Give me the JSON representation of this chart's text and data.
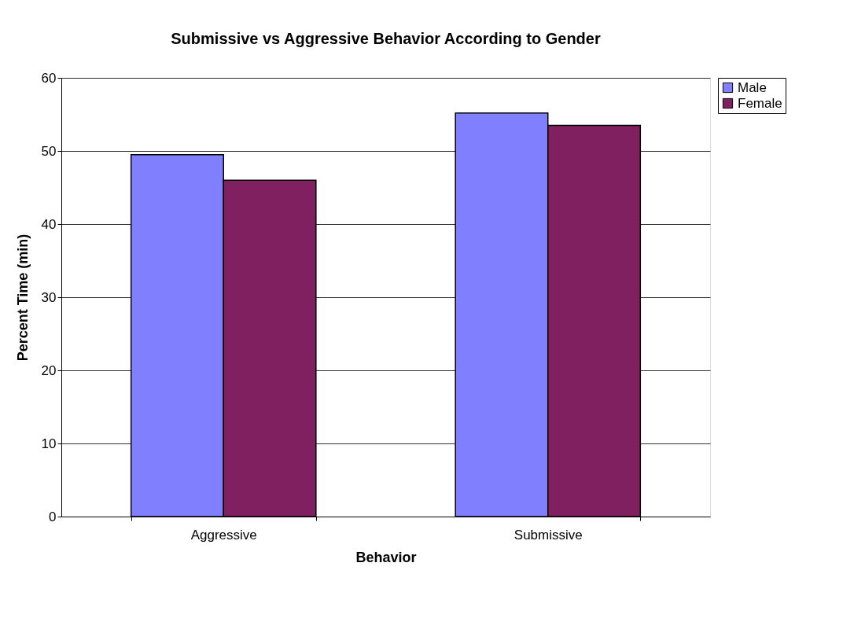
{
  "chart_data": {
    "type": "bar",
    "title": "Submissive vs Aggressive Behavior According to Gender",
    "xlabel": "Behavior",
    "ylabel": "Percent Time (min)",
    "categories": [
      "Aggressive",
      "Submissive"
    ],
    "series": [
      {
        "name": "Male",
        "color": "#8080ff",
        "values": [
          49.5,
          55.2
        ]
      },
      {
        "name": "Female",
        "color": "#802060",
        "values": [
          46.0,
          53.5
        ]
      }
    ],
    "ylim": [
      0,
      60
    ],
    "yticks": [
      0,
      10,
      20,
      30,
      40,
      50,
      60
    ],
    "grid": "y",
    "legend": "right"
  }
}
